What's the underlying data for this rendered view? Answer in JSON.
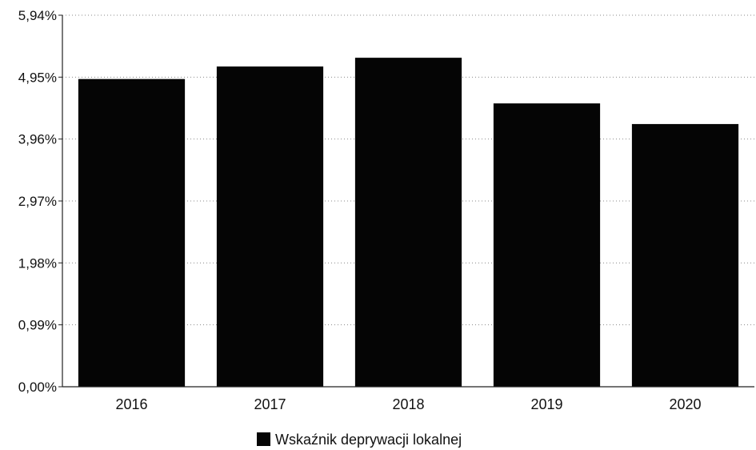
{
  "chart_data": {
    "type": "bar",
    "categories": [
      "2016",
      "2017",
      "2018",
      "2019",
      "2020"
    ],
    "series": [
      {
        "name": "Wskaźnik deprywacji lokalnej",
        "values": [
          4.92,
          5.12,
          5.26,
          4.53,
          4.2
        ],
        "color": "#050505"
      }
    ],
    "yticks": [
      0,
      0.99,
      1.98,
      2.97,
      3.96,
      4.95,
      5.94
    ],
    "ytick_labels": [
      "0,00%",
      "0,99%",
      "1,98%",
      "2,97%",
      "3,96%",
      "4,95%",
      "5,94%"
    ],
    "ylim": [
      0,
      5.94
    ],
    "grid": true,
    "legend_position": "bottom",
    "title": "",
    "xlabel": "",
    "ylabel": ""
  }
}
